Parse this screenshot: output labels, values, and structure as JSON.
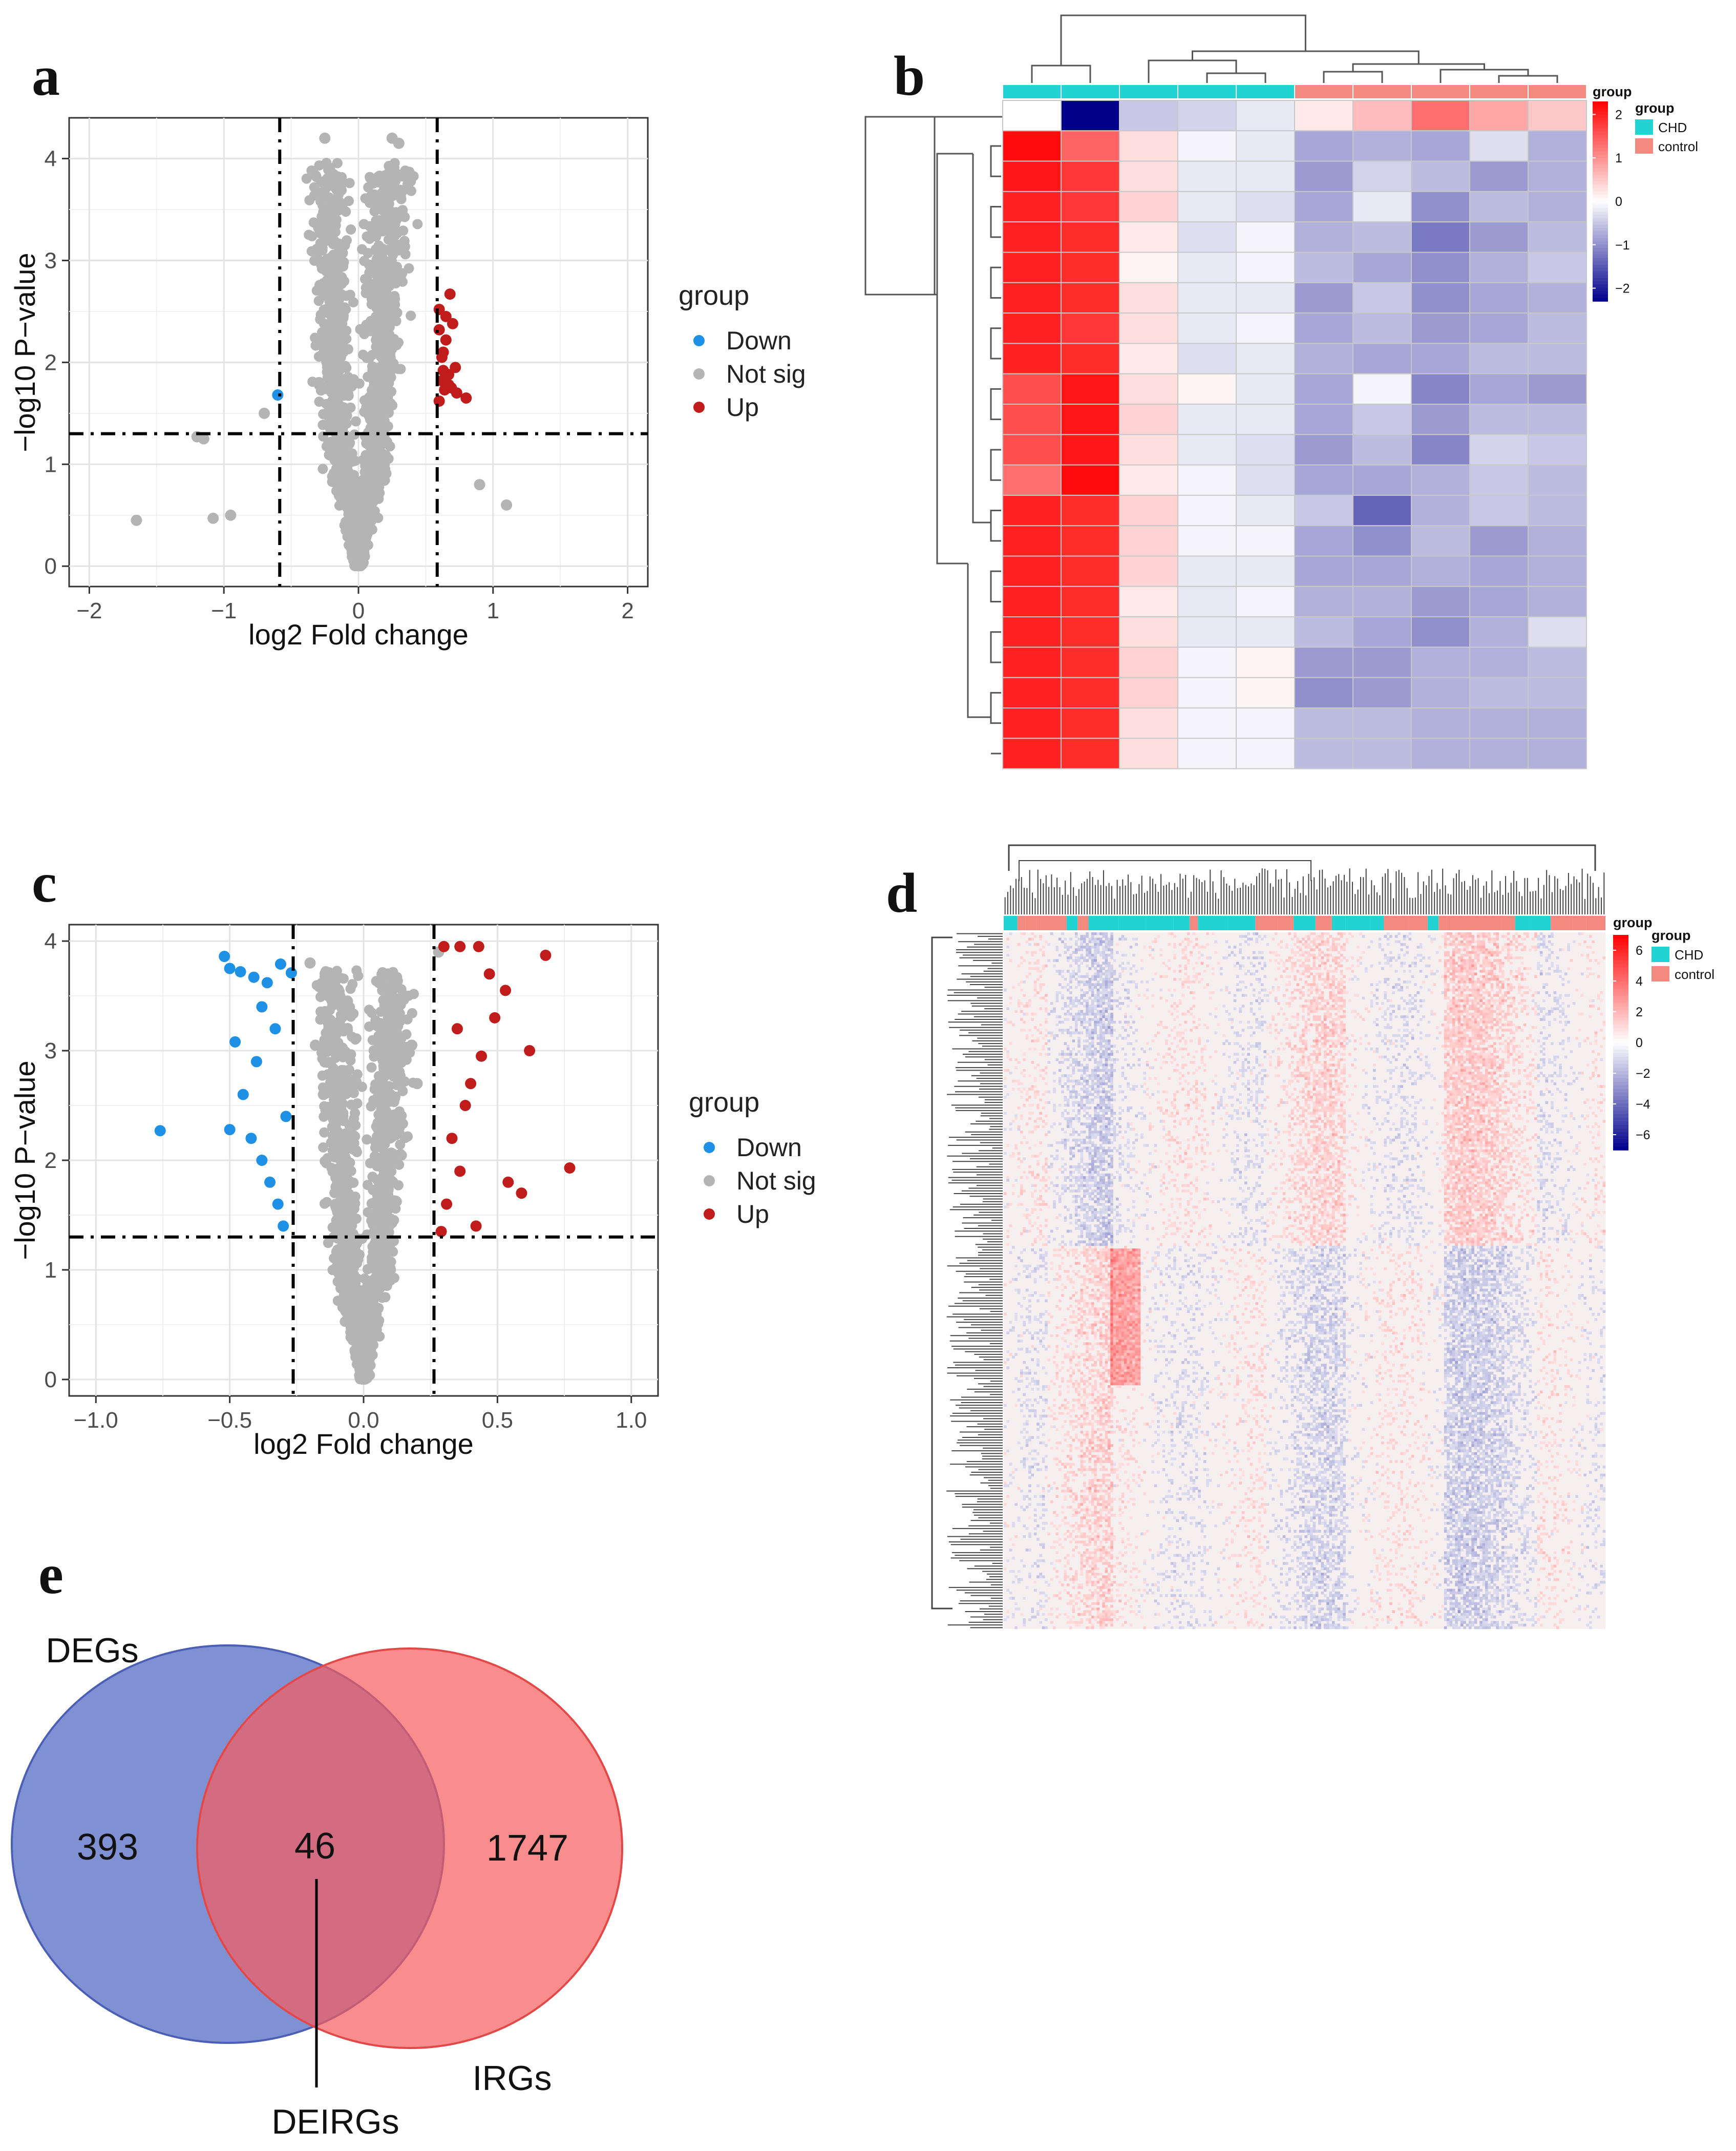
{
  "panels": {
    "a": "a",
    "b": "b",
    "c": "c",
    "d": "d",
    "e": "e"
  },
  "chart_data": [
    {
      "panel": "a",
      "type": "scatter",
      "xlabel": "log2 Fold change",
      "ylabel": "−log10 P−value",
      "xlim": [
        -2.15,
        2.15
      ],
      "ylim": [
        -0.2,
        4.4
      ],
      "x_ticks": [
        "−2",
        "−1",
        "0",
        "1",
        "2"
      ],
      "x_tick_values": [
        -2,
        -1,
        0,
        1,
        2
      ],
      "y_ticks": [
        "0",
        "1",
        "2",
        "3",
        "4"
      ],
      "y_tick_values": [
        0,
        1,
        2,
        3,
        4
      ],
      "grid": true,
      "thresholds": {
        "x": [
          -0.585,
          0.585
        ],
        "y": 1.3
      },
      "legend": {
        "title": "group",
        "position": "right",
        "entries": [
          "Down",
          "Not sig",
          "Up"
        ]
      },
      "colors": {
        "Down": "#1e90e6",
        "Not sig": "#b4b4b4",
        "Up": "#c01c1c"
      },
      "series": [
        {
          "name": "Down",
          "points": [
            [
              -0.6,
              1.68
            ]
          ]
        },
        {
          "name": "Not sig",
          "points": [
            [
              -1.65,
              0.45
            ],
            [
              -1.2,
              1.27
            ],
            [
              -1.15,
              1.25
            ],
            [
              -1.08,
              0.47
            ],
            [
              -0.95,
              0.5
            ],
            [
              -0.7,
              1.5
            ],
            [
              -0.25,
              4.2
            ],
            [
              0.25,
              4.2
            ],
            [
              0.3,
              4.15
            ],
            [
              0.9,
              0.8
            ],
            [
              1.1,
              0.6
            ]
          ]
        },
        {
          "name": "Up",
          "points": [
            [
              0.6,
              2.52
            ],
            [
              0.6,
              2.32
            ],
            [
              0.6,
              1.62
            ],
            [
              0.62,
              2.05
            ],
            [
              0.62,
              1.82
            ],
            [
              0.63,
              2.1
            ],
            [
              0.63,
              1.92
            ],
            [
              0.64,
              1.73
            ],
            [
              0.65,
              2.22
            ],
            [
              0.65,
              2.45
            ],
            [
              0.67,
              1.78
            ],
            [
              0.67,
              1.88
            ],
            [
              0.68,
              2.67
            ],
            [
              0.69,
              1.75
            ],
            [
              0.7,
              2.38
            ],
            [
              0.72,
              1.95
            ],
            [
              0.73,
              1.7
            ],
            [
              0.8,
              1.65
            ]
          ]
        }
      ]
    },
    {
      "panel": "b",
      "type": "heatmap",
      "rows": 22,
      "columns": 10,
      "column_groups": [
        "CHD",
        "CHD",
        "CHD",
        "CHD",
        "CHD",
        "control",
        "control",
        "control",
        "control",
        "control"
      ],
      "legend_title": "group",
      "legend_entries": [
        "CHD",
        "control"
      ],
      "group_colors": {
        "CHD": "#22d3d3",
        "control": "#f48a7f"
      },
      "scale_title": "group",
      "scale_ticks": [
        "2",
        "1",
        "0",
        "−1",
        "−2"
      ],
      "scale_values": [
        2,
        1,
        0,
        -1,
        -2
      ],
      "scale_range": [
        -2.3,
        2.3
      ],
      "scale_colors": {
        "low": "#00008b",
        "mid": "#ffffff",
        "high": "#ff0000"
      },
      "values": [
        [
          0.0,
          -2.3,
          -0.5,
          -0.4,
          -0.2,
          0.2,
          0.6,
          1.3,
          0.8,
          0.5
        ],
        [
          2.2,
          1.4,
          0.3,
          -0.1,
          -0.2,
          -0.8,
          -0.7,
          -0.8,
          -0.3,
          -0.7
        ],
        [
          2.1,
          1.8,
          0.3,
          -0.2,
          -0.2,
          -0.9,
          -0.4,
          -0.6,
          -0.9,
          -0.7
        ],
        [
          2.0,
          1.8,
          0.4,
          -0.2,
          -0.3,
          -0.8,
          -0.2,
          -1.0,
          -0.6,
          -0.7
        ],
        [
          2.0,
          1.9,
          0.2,
          -0.3,
          -0.1,
          -0.7,
          -0.6,
          -1.2,
          -0.9,
          -0.6
        ],
        [
          2.0,
          1.9,
          0.1,
          -0.2,
          -0.1,
          -0.6,
          -0.8,
          -1.0,
          -0.7,
          -0.5
        ],
        [
          2.0,
          1.9,
          0.3,
          -0.2,
          -0.2,
          -0.9,
          -0.5,
          -1.0,
          -0.8,
          -0.7
        ],
        [
          2.0,
          1.8,
          0.3,
          -0.2,
          -0.1,
          -0.8,
          -0.6,
          -0.9,
          -0.8,
          -0.6
        ],
        [
          2.0,
          1.9,
          0.2,
          -0.3,
          -0.2,
          -0.7,
          -0.8,
          -0.8,
          -0.6,
          -0.6
        ],
        [
          1.6,
          2.1,
          0.3,
          0.1,
          -0.2,
          -0.8,
          -0.1,
          -1.1,
          -0.8,
          -0.9
        ],
        [
          1.6,
          2.1,
          0.4,
          -0.2,
          -0.2,
          -0.8,
          -0.5,
          -0.9,
          -0.6,
          -0.6
        ],
        [
          1.6,
          2.1,
          0.3,
          -0.2,
          -0.3,
          -0.9,
          -0.6,
          -1.1,
          -0.4,
          -0.5
        ],
        [
          1.3,
          2.2,
          0.2,
          -0.1,
          -0.3,
          -0.8,
          -0.8,
          -0.7,
          -0.5,
          -0.6
        ],
        [
          2.0,
          1.9,
          0.4,
          -0.1,
          -0.2,
          -0.5,
          -1.4,
          -0.7,
          -0.5,
          -0.6
        ],
        [
          2.0,
          1.9,
          0.4,
          -0.1,
          -0.1,
          -0.8,
          -1.0,
          -0.6,
          -0.9,
          -0.7
        ],
        [
          2.0,
          1.9,
          0.4,
          -0.2,
          -0.2,
          -0.8,
          -0.8,
          -0.7,
          -0.8,
          -0.7
        ],
        [
          2.0,
          1.9,
          0.2,
          -0.2,
          -0.1,
          -0.7,
          -0.7,
          -0.9,
          -0.8,
          -0.7
        ],
        [
          2.0,
          1.9,
          0.3,
          -0.2,
          -0.2,
          -0.6,
          -0.8,
          -1.0,
          -0.7,
          -0.3
        ],
        [
          2.0,
          1.9,
          0.4,
          -0.1,
          0.1,
          -0.9,
          -0.9,
          -0.7,
          -0.7,
          -0.6
        ],
        [
          2.0,
          1.9,
          0.4,
          -0.1,
          0.1,
          -1.0,
          -0.9,
          -0.7,
          -0.6,
          -0.6
        ],
        [
          2.0,
          1.9,
          0.3,
          -0.1,
          -0.1,
          -0.6,
          -0.6,
          -0.7,
          -0.7,
          -0.7
        ],
        [
          2.0,
          1.9,
          0.3,
          -0.1,
          -0.1,
          -0.6,
          -0.6,
          -0.7,
          -0.7,
          -0.7
        ]
      ]
    },
    {
      "panel": "c",
      "type": "scatter",
      "xlabel": "log2 Fold change",
      "ylabel": "−log10 P−value",
      "xlim": [
        -1.1,
        1.1
      ],
      "ylim": [
        -0.15,
        4.15
      ],
      "x_ticks": [
        "−1.0",
        "−0.5",
        "0.0",
        "0.5",
        "1.0"
      ],
      "x_tick_values": [
        -1.0,
        -0.5,
        0.0,
        0.5,
        1.0
      ],
      "y_ticks": [
        "0",
        "1",
        "2",
        "3",
        "4"
      ],
      "y_tick_values": [
        0,
        1,
        2,
        3,
        4
      ],
      "grid": true,
      "thresholds": {
        "x": [
          -0.263,
          0.263
        ],
        "y": 1.3
      },
      "legend": {
        "title": "group",
        "position": "right",
        "entries": [
          "Down",
          "Not sig",
          "Up"
        ]
      },
      "colors": {
        "Down": "#1e90e6",
        "Not sig": "#b4b4b4",
        "Up": "#c01c1c"
      },
      "series": [
        {
          "name": "Down",
          "points": [
            [
              -0.76,
              2.27
            ],
            [
              -0.52,
              3.86
            ],
            [
              -0.5,
              3.75
            ],
            [
              -0.46,
              3.72
            ],
            [
              -0.41,
              3.67
            ],
            [
              -0.36,
              3.62
            ],
            [
              -0.31,
              3.79
            ],
            [
              -0.27,
              3.71
            ],
            [
              -0.38,
              3.4
            ],
            [
              -0.33,
              3.2
            ],
            [
              -0.48,
              3.08
            ],
            [
              -0.5,
              2.28
            ],
            [
              -0.45,
              2.6
            ],
            [
              -0.4,
              2.9
            ],
            [
              -0.42,
              2.2
            ],
            [
              -0.38,
              2.0
            ],
            [
              -0.35,
              1.8
            ],
            [
              -0.32,
              1.6
            ],
            [
              -0.3,
              1.4
            ],
            [
              -0.29,
              2.4
            ]
          ]
        },
        {
          "name": "Not sig",
          "points": [
            [
              -0.2,
              3.8
            ],
            [
              -0.18,
              3.05
            ],
            [
              -0.15,
              2.6
            ],
            [
              0.18,
              3.05
            ],
            [
              0.2,
              2.7
            ],
            [
              0.28,
              3.9
            ],
            [
              0.1,
              1.0
            ],
            [
              -0.1,
              1.0
            ]
          ]
        },
        {
          "name": "Up",
          "points": [
            [
              0.3,
              3.95
            ],
            [
              0.36,
              3.95
            ],
            [
              0.43,
              3.95
            ],
            [
              0.68,
              3.87
            ],
            [
              0.47,
              3.7
            ],
            [
              0.49,
              3.3
            ],
            [
              0.53,
              3.55
            ],
            [
              0.62,
              3.0
            ],
            [
              0.44,
              2.95
            ],
            [
              0.77,
              1.93
            ],
            [
              0.54,
              1.8
            ],
            [
              0.59,
              1.7
            ],
            [
              0.38,
              2.5
            ],
            [
              0.33,
              2.2
            ],
            [
              0.31,
              1.6
            ],
            [
              0.42,
              1.4
            ],
            [
              0.36,
              1.9
            ],
            [
              0.29,
              1.35
            ],
            [
              0.4,
              2.7
            ],
            [
              0.35,
              3.2
            ]
          ]
        }
      ]
    },
    {
      "panel": "d",
      "type": "heatmap",
      "legend_title": "group",
      "legend_entries": [
        "CHD",
        "control"
      ],
      "group_colors": {
        "CHD": "#22d3d3",
        "control": "#f48a7f"
      },
      "scale_title": "group",
      "scale_ticks": [
        "6",
        "4",
        "2",
        "0",
        "−2",
        "−4",
        "−6"
      ],
      "scale_values": [
        6,
        4,
        2,
        0,
        -2,
        -4,
        -6
      ],
      "scale_range": [
        -7,
        7
      ],
      "scale_colors": {
        "low": "#00008b",
        "mid": "#ffffff",
        "high": "#ff0000"
      }
    },
    {
      "panel": "e",
      "type": "venn",
      "sets": [
        {
          "name": "DEGs",
          "only": "393",
          "color": "#5b72c6"
        },
        {
          "name": "IRGs",
          "only": "1747",
          "color": "#f57070"
        }
      ],
      "intersection": {
        "label": "DEIRGs",
        "value": "46"
      }
    }
  ]
}
